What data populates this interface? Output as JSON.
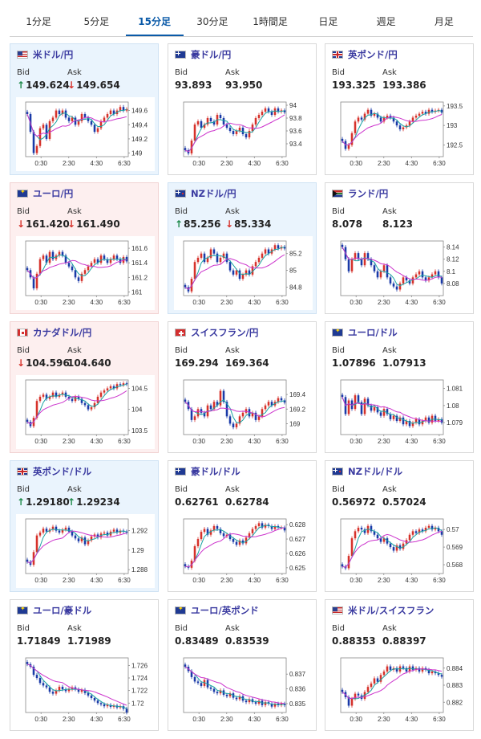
{
  "tabs": [
    {
      "label": "1分足",
      "active": false
    },
    {
      "label": "5分足",
      "active": false
    },
    {
      "label": "15分足",
      "active": true
    },
    {
      "label": "30分足",
      "active": false
    },
    {
      "label": "1時間足",
      "active": false
    },
    {
      "label": "日足",
      "active": false
    },
    {
      "label": "週足",
      "active": false
    },
    {
      "label": "月足",
      "active": false
    }
  ],
  "colors": {
    "up_candle": "#d6322b",
    "down_candle": "#1a3aa8",
    "ma_short": "#1aa3a3",
    "ma_long": "#cc33cc",
    "up_arrow": "#1e8a4a",
    "down_arrow": "#d6322b"
  },
  "pairs": [
    {
      "name": "米ドル/円",
      "flag": "us",
      "state": "up",
      "bid_label": "Bid",
      "ask_label": "Ask",
      "bid": "149.624",
      "ask": "149.654",
      "bid_dir": "up",
      "ask_dir": "down",
      "chart_data": {
        "type": "candlestick",
        "x_ticks": [
          "0:30",
          "2:30",
          "4:30",
          "6:30"
        ],
        "y_ticks": [
          "149.6",
          "149.4",
          "149.2",
          "149"
        ],
        "y_range": [
          148.95,
          149.72
        ],
        "close": [
          149.55,
          149.3,
          149.0,
          149.1,
          149.35,
          149.4,
          149.2,
          149.45,
          149.5,
          149.6,
          149.55,
          149.6,
          149.5,
          149.45,
          149.5,
          149.4,
          149.45,
          149.55,
          149.5,
          149.45,
          149.4,
          149.3,
          149.35,
          149.45,
          149.5,
          149.55,
          149.6,
          149.55,
          149.6,
          149.65,
          149.6,
          149.62
        ]
      }
    },
    {
      "name": "豪ドル/円",
      "flag": "au",
      "state": "",
      "bid_label": "Bid",
      "ask_label": "Ask",
      "bid": "93.893",
      "ask": "93.950",
      "bid_dir": "",
      "ask_dir": "",
      "chart_data": {
        "type": "candlestick",
        "x_ticks": [
          "0:30",
          "2:30",
          "4:30",
          "6:30"
        ],
        "y_ticks": [
          "94",
          "93.8",
          "93.6",
          "93.4"
        ],
        "y_range": [
          93.2,
          94.05
        ],
        "close": [
          93.3,
          93.25,
          93.45,
          93.7,
          93.75,
          93.65,
          93.7,
          93.8,
          93.75,
          93.7,
          93.85,
          93.8,
          93.7,
          93.65,
          93.6,
          93.55,
          93.6,
          93.65,
          93.55,
          93.5,
          93.6,
          93.7,
          93.8,
          93.85,
          93.9,
          93.95,
          93.9,
          93.85,
          93.95,
          93.9,
          93.92,
          93.89
        ]
      }
    },
    {
      "name": "英ポンド/円",
      "flag": "gb",
      "state": "",
      "bid_label": "Bid",
      "ask_label": "Ask",
      "bid": "193.325",
      "ask": "193.386",
      "bid_dir": "",
      "ask_dir": "",
      "chart_data": {
        "type": "candlestick",
        "x_ticks": [
          "0:30",
          "2:30",
          "4:30",
          "6:30"
        ],
        "y_ticks": [
          "193.5",
          "193",
          "192.5"
        ],
        "y_range": [
          192.2,
          193.6
        ],
        "close": [
          192.6,
          192.4,
          192.5,
          192.8,
          193.1,
          193.2,
          193.15,
          193.3,
          193.4,
          193.25,
          193.3,
          193.2,
          193.1,
          193.2,
          193.25,
          193.2,
          193.1,
          193.0,
          192.9,
          192.95,
          193.0,
          193.1,
          193.2,
          193.25,
          193.3,
          193.35,
          193.3,
          193.4,
          193.35,
          193.38,
          193.4,
          193.33
        ]
      }
    },
    {
      "name": "ユーロ/円",
      "flag": "eu",
      "state": "down",
      "bid_label": "Bid",
      "ask_label": "Ask",
      "bid": "161.420",
      "ask": "161.490",
      "bid_dir": "down",
      "ask_dir": "down",
      "chart_data": {
        "type": "candlestick",
        "x_ticks": [
          "0:30",
          "2:30",
          "4:30",
          "6:30"
        ],
        "y_ticks": [
          "161.6",
          "161.4",
          "161.2",
          "161"
        ],
        "y_range": [
          160.95,
          161.7
        ],
        "close": [
          161.3,
          161.2,
          161.05,
          161.25,
          161.45,
          161.5,
          161.4,
          161.55,
          161.45,
          161.5,
          161.55,
          161.5,
          161.4,
          161.35,
          161.3,
          161.2,
          161.15,
          161.25,
          161.3,
          161.35,
          161.4,
          161.45,
          161.4,
          161.5,
          161.45,
          161.4,
          161.45,
          161.5,
          161.45,
          161.4,
          161.48,
          161.42
        ]
      }
    },
    {
      "name": "NZドル/円",
      "flag": "nz",
      "state": "up",
      "bid_label": "Bid",
      "ask_label": "Ask",
      "bid": "85.256",
      "ask": "85.334",
      "bid_dir": "up",
      "ask_dir": "down",
      "chart_data": {
        "type": "candlestick",
        "x_ticks": [
          "0:30",
          "2:30",
          "4:30",
          "6:30"
        ],
        "y_ticks": [
          "85.2",
          "85",
          "84.8"
        ],
        "y_range": [
          84.7,
          85.35
        ],
        "close": [
          84.8,
          84.75,
          84.9,
          85.1,
          85.15,
          85.2,
          85.1,
          85.15,
          85.25,
          85.2,
          85.1,
          85.15,
          85.2,
          85.1,
          85.0,
          84.95,
          85.0,
          84.9,
          84.95,
          85.0,
          84.95,
          85.05,
          85.1,
          85.15,
          85.2,
          85.25,
          85.2,
          85.25,
          85.3,
          85.26,
          85.28,
          85.26
        ]
      }
    },
    {
      "name": "ランド/円",
      "flag": "za",
      "state": "",
      "bid_label": "Bid",
      "ask_label": "Ask",
      "bid": "8.078",
      "ask": "8.123",
      "bid_dir": "",
      "ask_dir": "",
      "chart_data": {
        "type": "candlestick",
        "x_ticks": [
          "0:30",
          "2:30",
          "4:30",
          "6:30"
        ],
        "y_ticks": [
          "8.14",
          "8.12",
          "8.1",
          "8.08"
        ],
        "y_range": [
          8.06,
          8.15
        ],
        "close": [
          8.14,
          8.12,
          8.1,
          8.12,
          8.13,
          8.12,
          8.11,
          8.13,
          8.12,
          8.11,
          8.1,
          8.09,
          8.1,
          8.11,
          8.09,
          8.08,
          8.075,
          8.07,
          8.08,
          8.09,
          8.085,
          8.08,
          8.09,
          8.095,
          8.1,
          8.09,
          8.085,
          8.09,
          8.095,
          8.1,
          8.09,
          8.08
        ]
      }
    },
    {
      "name": "カナダドル/円",
      "flag": "ca",
      "state": "down",
      "bid_label": "Bid",
      "ask_label": "Ask",
      "bid": "104.596",
      "ask": "104.640",
      "bid_dir": "down",
      "ask_dir": "",
      "chart_data": {
        "type": "candlestick",
        "x_ticks": [
          "0:30",
          "2:30",
          "4:30",
          "6:30"
        ],
        "y_ticks": [
          "104.5",
          "104",
          "103.5"
        ],
        "y_range": [
          103.4,
          104.7
        ],
        "close": [
          103.7,
          103.6,
          103.8,
          104.2,
          104.3,
          104.35,
          104.25,
          104.3,
          104.4,
          104.3,
          104.35,
          104.4,
          104.3,
          104.25,
          104.2,
          104.3,
          104.25,
          104.15,
          104.1,
          104.0,
          104.05,
          104.15,
          104.3,
          104.4,
          104.45,
          104.5,
          104.55,
          104.5,
          104.6,
          104.58,
          104.62,
          104.6
        ]
      }
    },
    {
      "name": "スイスフラン/円",
      "flag": "ch",
      "state": "",
      "bid_label": "Bid",
      "ask_label": "Ask",
      "bid": "169.294",
      "ask": "169.364",
      "bid_dir": "",
      "ask_dir": "",
      "chart_data": {
        "type": "candlestick",
        "x_ticks": [
          "0:30",
          "2:30",
          "4:30",
          "6:30"
        ],
        "y_ticks": [
          "169.4",
          "169.2",
          "169"
        ],
        "y_range": [
          168.85,
          169.6
        ],
        "close": [
          169.3,
          169.2,
          169.05,
          169.1,
          169.2,
          169.15,
          169.1,
          169.25,
          169.2,
          169.3,
          169.25,
          169.45,
          169.3,
          169.1,
          169.0,
          168.95,
          169.0,
          169.1,
          169.15,
          169.2,
          169.1,
          169.15,
          169.05,
          169.1,
          169.2,
          169.25,
          169.3,
          169.25,
          169.3,
          169.35,
          169.32,
          169.29
        ]
      }
    },
    {
      "name": "ユーロ/ドル",
      "flag": "eu",
      "state": "",
      "bid_label": "Bid",
      "ask_label": "Ask",
      "bid": "1.07896",
      "ask": "1.07913",
      "bid_dir": "",
      "ask_dir": "",
      "chart_data": {
        "type": "candlestick",
        "x_ticks": [
          "0:30",
          "2:30",
          "4:30",
          "6:30"
        ],
        "y_ticks": [
          "1.081",
          "1.08",
          "1.079"
        ],
        "y_range": [
          1.0783,
          1.0815
        ],
        "close": [
          1.0805,
          1.0795,
          1.0803,
          1.0798,
          1.0806,
          1.0802,
          1.0795,
          1.0804,
          1.08,
          1.0797,
          1.0799,
          1.0796,
          1.0794,
          1.0798,
          1.0795,
          1.0792,
          1.0794,
          1.0791,
          1.0793,
          1.0789,
          1.0791,
          1.0788,
          1.079,
          1.0792,
          1.0789,
          1.0791,
          1.0793,
          1.079,
          1.0794,
          1.0791,
          1.0792,
          1.079
        ]
      }
    },
    {
      "name": "英ポンド/ドル",
      "flag": "gb",
      "state": "up",
      "bid_label": "Bid",
      "ask_label": "Ask",
      "bid": "1.29180",
      "ask": "1.29234",
      "bid_dir": "up",
      "ask_dir": "up",
      "chart_data": {
        "type": "candlestick",
        "x_ticks": [
          "0:30",
          "2:30",
          "4:30",
          "6:30"
        ],
        "y_ticks": [
          "1.292",
          "1.29",
          "1.288"
        ],
        "y_range": [
          1.2876,
          1.2932
        ],
        "close": [
          1.2888,
          1.2885,
          1.2898,
          1.2915,
          1.2918,
          1.2922,
          1.2919,
          1.2921,
          1.2924,
          1.292,
          1.2918,
          1.2921,
          1.2923,
          1.2919,
          1.2915,
          1.2912,
          1.2909,
          1.2913,
          1.2906,
          1.291,
          1.2914,
          1.2916,
          1.2913,
          1.2917,
          1.2918,
          1.2915,
          1.2919,
          1.2921,
          1.2918,
          1.292,
          1.2919,
          1.2918
        ]
      }
    },
    {
      "name": "豪ドル/ドル",
      "flag": "au",
      "state": "",
      "bid_label": "Bid",
      "ask_label": "Ask",
      "bid": "0.62761",
      "ask": "0.62784",
      "bid_dir": "",
      "ask_dir": "",
      "chart_data": {
        "type": "candlestick",
        "x_ticks": [
          "0:30",
          "2:30",
          "4:30",
          "6:30"
        ],
        "y_ticks": [
          "0.628",
          "0.627",
          "0.626",
          "0.625"
        ],
        "y_range": [
          0.6246,
          0.6284
        ],
        "close": [
          0.6251,
          0.625,
          0.6255,
          0.6265,
          0.627,
          0.6275,
          0.6277,
          0.6273,
          0.6276,
          0.6279,
          0.6277,
          0.6274,
          0.6272,
          0.6273,
          0.627,
          0.6268,
          0.6266,
          0.6269,
          0.6267,
          0.6271,
          0.6274,
          0.6277,
          0.6279,
          0.6281,
          0.6278,
          0.628,
          0.6279,
          0.6277,
          0.6279,
          0.6278,
          0.6278,
          0.6276
        ]
      }
    },
    {
      "name": "NZドル/ドル",
      "flag": "nz",
      "state": "",
      "bid_label": "Bid",
      "ask_label": "Ask",
      "bid": "0.56972",
      "ask": "0.57024",
      "bid_dir": "",
      "ask_dir": "",
      "chart_data": {
        "type": "candlestick",
        "x_ticks": [
          "0:30",
          "2:30",
          "4:30",
          "6:30"
        ],
        "y_ticks": [
          "0.57",
          "0.569",
          "0.568"
        ],
        "y_range": [
          0.5675,
          0.5706
        ],
        "close": [
          0.5679,
          0.5678,
          0.5685,
          0.5695,
          0.5699,
          0.5701,
          0.57,
          0.5698,
          0.5702,
          0.5699,
          0.5697,
          0.5695,
          0.5693,
          0.5695,
          0.5692,
          0.569,
          0.5688,
          0.5691,
          0.5689,
          0.5692,
          0.5694,
          0.5697,
          0.5699,
          0.5698,
          0.57,
          0.5699,
          0.5701,
          0.5702,
          0.57,
          0.5701,
          0.5699,
          0.5697
        ]
      }
    },
    {
      "name": "ユーロ/豪ドル",
      "flag": "eu",
      "state": "",
      "bid_label": "Bid",
      "ask_label": "Ask",
      "bid": "1.71849",
      "ask": "1.71989",
      "bid_dir": "",
      "ask_dir": "",
      "chart_data": {
        "type": "candlestick",
        "x_ticks": [
          "0:30",
          "2:30",
          "4:30",
          "6:30"
        ],
        "y_ticks": [
          "1.726",
          "1.724",
          "1.722",
          "1.72"
        ],
        "y_range": [
          1.7185,
          1.7272
        ],
        "close": [
          1.7262,
          1.7258,
          1.7245,
          1.724,
          1.7232,
          1.7228,
          1.7225,
          1.7218,
          1.7215,
          1.722,
          1.7226,
          1.7222,
          1.7219,
          1.7222,
          1.7225,
          1.7222,
          1.7218,
          1.7221,
          1.7216,
          1.7212,
          1.7208,
          1.7204,
          1.72,
          1.7198,
          1.7195,
          1.7197,
          1.7194,
          1.7196,
          1.7193,
          1.7195,
          1.7191,
          1.7185
        ]
      }
    },
    {
      "name": "ユーロ/英ポンド",
      "flag": "eu",
      "state": "",
      "bid_label": "Bid",
      "ask_label": "Ask",
      "bid": "0.83489",
      "ask": "0.83539",
      "bid_dir": "",
      "ask_dir": "",
      "chart_data": {
        "type": "candlestick",
        "x_ticks": [
          "0:30",
          "2:30",
          "4:30",
          "6:30"
        ],
        "y_ticks": [
          "0.837",
          "0.836",
          "0.835"
        ],
        "y_range": [
          0.8344,
          0.8381
        ],
        "close": [
          0.8375,
          0.8372,
          0.8368,
          0.8365,
          0.8364,
          0.8362,
          0.8366,
          0.8361,
          0.836,
          0.8358,
          0.8357,
          0.8359,
          0.8356,
          0.8355,
          0.8357,
          0.8354,
          0.8353,
          0.8355,
          0.8352,
          0.8351,
          0.8353,
          0.8351,
          0.835,
          0.8352,
          0.8349,
          0.8351,
          0.835,
          0.8348,
          0.835,
          0.8349,
          0.835,
          0.8349
        ]
      }
    },
    {
      "name": "米ドル/スイスフラン",
      "flag": "us",
      "state": "",
      "bid_label": "Bid",
      "ask_label": "Ask",
      "bid": "0.88353",
      "ask": "0.88397",
      "bid_dir": "",
      "ask_dir": "",
      "chart_data": {
        "type": "candlestick",
        "x_ticks": [
          "0:30",
          "2:30",
          "4:30",
          "6:30"
        ],
        "y_ticks": [
          "0.884",
          "0.883",
          "0.882"
        ],
        "y_range": [
          0.8814,
          0.8846
        ],
        "close": [
          0.8826,
          0.8823,
          0.8818,
          0.8822,
          0.8825,
          0.8824,
          0.8822,
          0.8826,
          0.8829,
          0.8831,
          0.8834,
          0.8832,
          0.8836,
          0.8838,
          0.8841,
          0.8839,
          0.884,
          0.8838,
          0.8841,
          0.884,
          0.8838,
          0.8841,
          0.8839,
          0.884,
          0.8838,
          0.884,
          0.8839,
          0.8837,
          0.8838,
          0.8837,
          0.8836,
          0.8835
        ]
      }
    }
  ]
}
